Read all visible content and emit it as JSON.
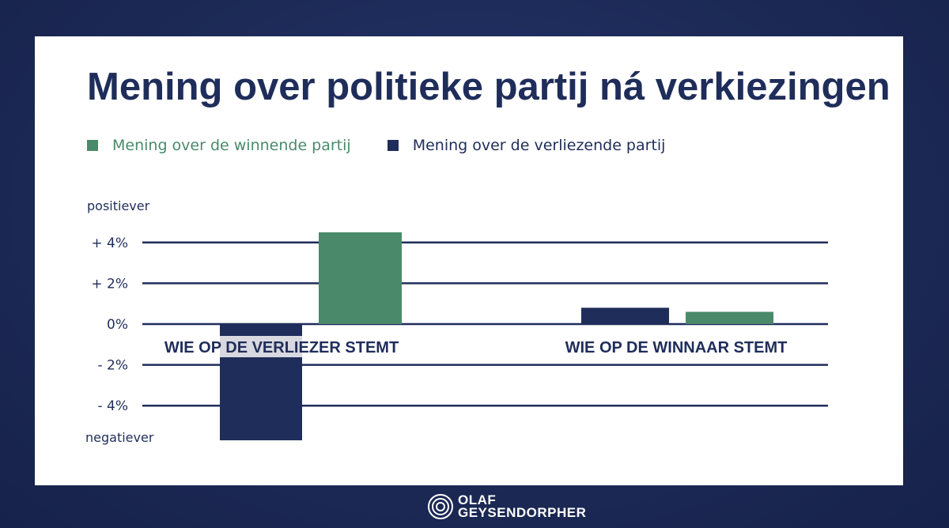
{
  "title": "Mening over politieke partij ná verkiezingen",
  "legend": [
    {
      "label": "Mening over de winnende partij",
      "color": "#4a8a6a"
    },
    {
      "label": "Mening over de verliezende partij",
      "color": "#1f2d5a"
    }
  ],
  "axis_annotations": {
    "top": "positiever",
    "bottom": "negatiever"
  },
  "chart_data": {
    "type": "bar",
    "title": "Mening over politieke partij ná verkiezingen",
    "categories": [
      "WIE OP DE VERLIEZER STEMT",
      "WIE OP DE WINNAAR STEMT"
    ],
    "series": [
      {
        "name": "Mening over de verliezende partij",
        "color": "#1f2d5a",
        "values": [
          -5.7,
          0.8
        ]
      },
      {
        "name": "Mening over de winnende partij",
        "color": "#4a8a6a",
        "values": [
          4.5,
          0.6
        ]
      }
    ],
    "yticks": [
      4,
      2,
      0,
      -2,
      -4
    ],
    "ytick_labels": [
      "+ 4%",
      "+ 2%",
      "0%",
      "- 2%",
      "- 4%"
    ],
    "ylim": [
      -6,
      5
    ],
    "grid": true,
    "legend_position": "top-left",
    "xlabel": "",
    "ylabel": ""
  },
  "footer": {
    "brand_line1": "OLAF",
    "brand_line2": "GEYSENDORPHER"
  }
}
